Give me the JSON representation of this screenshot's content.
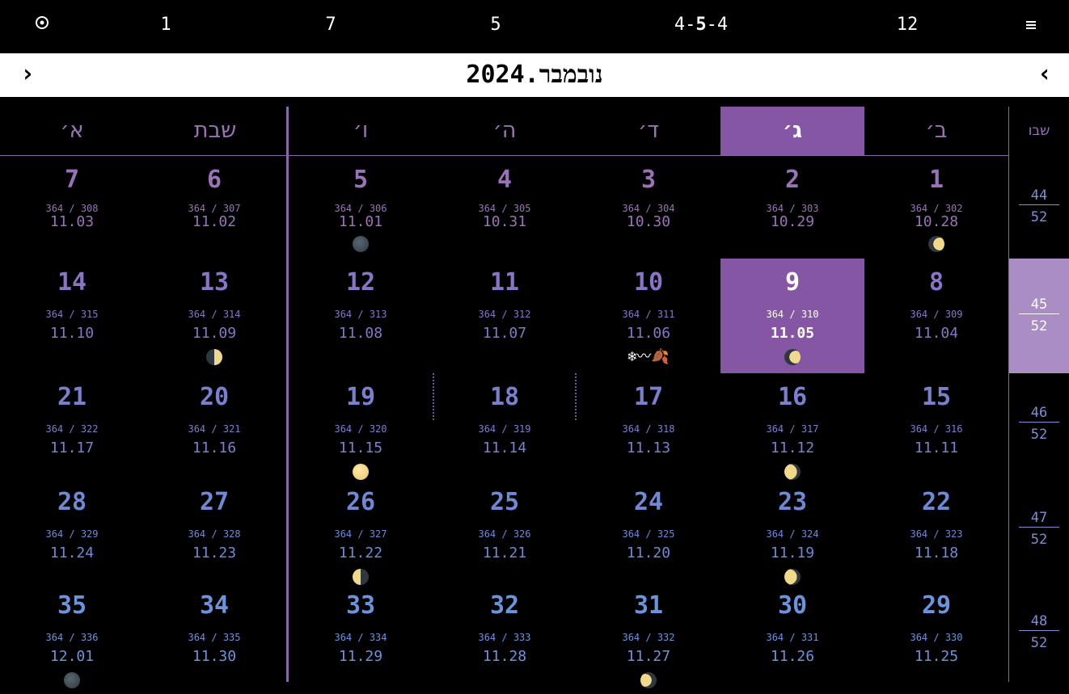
{
  "topbar": {
    "icon": "target-icon",
    "items": [
      "1",
      "7",
      "5",
      "4-5-4",
      "12"
    ],
    "pattern_bold": "5",
    "pattern_left": "4-",
    "pattern_right": "-4",
    "menu_icon": "hamburger-menu-icon"
  },
  "header": {
    "title": "נובמבר.2024",
    "prev_arrow": "‹",
    "next_arrow": "›"
  },
  "weekdays": [
    "ב׳",
    "ג׳",
    "ד׳",
    "ה׳",
    "ו׳",
    "שבת",
    "א׳"
  ],
  "week_column_label": "שבו",
  "colors": {
    "accent": "#8456a4",
    "week_highlight": "#a98dc4",
    "row_colors": [
      "#9a72b8",
      "#8a74c8",
      "#7a80d0",
      "#6e8ad6",
      "#6a94dc"
    ]
  },
  "weeks": [
    {
      "week": "44",
      "of": "52",
      "days": [
        {
          "num": "1",
          "yd": "364 / 302",
          "gd": "10.28",
          "moon": "waxing-crescent"
        },
        {
          "num": "2",
          "yd": "364 / 303",
          "gd": "10.29"
        },
        {
          "num": "3",
          "yd": "364 / 304",
          "gd": "10.30"
        },
        {
          "num": "4",
          "yd": "364 / 305",
          "gd": "10.31"
        },
        {
          "num": "5",
          "yd": "364 / 306",
          "gd": "11.01",
          "moon": "new"
        },
        {
          "num": "6",
          "yd": "364 / 307",
          "gd": "11.02"
        },
        {
          "num": "7",
          "yd": "364 / 308",
          "gd": "11.03"
        }
      ]
    },
    {
      "week": "45",
      "of": "52",
      "current": true,
      "days": [
        {
          "num": "8",
          "yd": "364 / 309",
          "gd": "11.04"
        },
        {
          "num": "9",
          "yd": "364 / 310",
          "gd": "11.05",
          "moon": "waxing-crescent",
          "today": true
        },
        {
          "num": "10",
          "yd": "364 / 311",
          "gd": "11.06",
          "icons": "❄〰🍂"
        },
        {
          "num": "11",
          "yd": "364 / 312",
          "gd": "11.07"
        },
        {
          "num": "12",
          "yd": "364 / 313",
          "gd": "11.08"
        },
        {
          "num": "13",
          "yd": "364 / 314",
          "gd": "11.09",
          "moon": "first-quarter"
        },
        {
          "num": "14",
          "yd": "364 / 315",
          "gd": "11.10"
        }
      ]
    },
    {
      "week": "46",
      "of": "52",
      "days": [
        {
          "num": "15",
          "yd": "364 / 316",
          "gd": "11.11"
        },
        {
          "num": "16",
          "yd": "364 / 317",
          "gd": "11.12",
          "moon": "waxing-gibbous"
        },
        {
          "num": "17",
          "yd": "364 / 318",
          "gd": "11.13"
        },
        {
          "num": "18",
          "yd": "364 / 319",
          "gd": "11.14"
        },
        {
          "num": "19",
          "yd": "364 / 320",
          "gd": "11.15",
          "moon": "full"
        },
        {
          "num": "20",
          "yd": "364 / 321",
          "gd": "11.16"
        },
        {
          "num": "21",
          "yd": "364 / 322",
          "gd": "11.17"
        }
      ]
    },
    {
      "week": "47",
      "of": "52",
      "days": [
        {
          "num": "22",
          "yd": "364 / 323",
          "gd": "11.18"
        },
        {
          "num": "23",
          "yd": "364 / 324",
          "gd": "11.19",
          "moon": "waning-gibbous"
        },
        {
          "num": "24",
          "yd": "364 / 325",
          "gd": "11.20"
        },
        {
          "num": "25",
          "yd": "364 / 326",
          "gd": "11.21"
        },
        {
          "num": "26",
          "yd": "364 / 327",
          "gd": "11.22",
          "moon": "last-quarter"
        },
        {
          "num": "27",
          "yd": "364 / 328",
          "gd": "11.23"
        },
        {
          "num": "28",
          "yd": "364 / 329",
          "gd": "11.24"
        }
      ]
    },
    {
      "week": "48",
      "of": "52",
      "days": [
        {
          "num": "29",
          "yd": "364 / 330",
          "gd": "11.25"
        },
        {
          "num": "30",
          "yd": "364 / 331",
          "gd": "11.26"
        },
        {
          "num": "31",
          "yd": "364 / 332",
          "gd": "11.27",
          "moon": "waning-crescent"
        },
        {
          "num": "32",
          "yd": "364 / 333",
          "gd": "11.28"
        },
        {
          "num": "33",
          "yd": "364 / 334",
          "gd": "11.29"
        },
        {
          "num": "34",
          "yd": "364 / 335",
          "gd": "11.30"
        },
        {
          "num": "35",
          "yd": "364 / 336",
          "gd": "12.01",
          "moon": "new"
        }
      ]
    }
  ]
}
